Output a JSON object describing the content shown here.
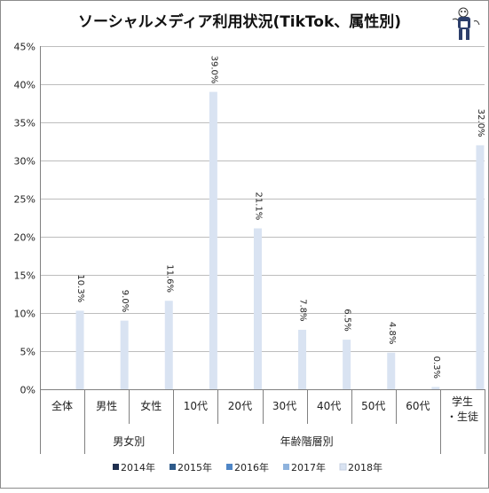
{
  "chart_data": {
    "type": "bar",
    "title": "ソーシャルメディア利用状況(TikTok、属性別)",
    "ylim": [
      0,
      45
    ],
    "yticks": [
      0,
      5,
      10,
      15,
      20,
      25,
      30,
      35,
      40,
      45
    ],
    "ytick_labels": [
      "0%",
      "5%",
      "10%",
      "15%",
      "20%",
      "25%",
      "30%",
      "35%",
      "40%",
      "45%"
    ],
    "categories": [
      [
        "全体"
      ],
      [
        "男性"
      ],
      [
        "女性"
      ],
      [
        "10代"
      ],
      [
        "20代"
      ],
      [
        "30代"
      ],
      [
        "40代"
      ],
      [
        "50代"
      ],
      [
        "60代"
      ],
      [
        "学生",
        "・生徒"
      ]
    ],
    "groups": [
      {
        "label": "男女別",
        "from": 1,
        "to": 2
      },
      {
        "label": "年齢階層別",
        "from": 3,
        "to": 8
      }
    ],
    "series": [
      {
        "name": "2014年",
        "color": "#1f2f4e",
        "values": [
          null,
          null,
          null,
          null,
          null,
          null,
          null,
          null,
          null,
          null
        ]
      },
      {
        "name": "2015年",
        "color": "#2e5a8a",
        "values": [
          null,
          null,
          null,
          null,
          null,
          null,
          null,
          null,
          null,
          null
        ]
      },
      {
        "name": "2016年",
        "color": "#4f86c6",
        "values": [
          null,
          null,
          null,
          null,
          null,
          null,
          null,
          null,
          null,
          null
        ]
      },
      {
        "name": "2017年",
        "color": "#8fb3dd",
        "values": [
          null,
          null,
          null,
          null,
          null,
          null,
          null,
          null,
          null,
          null
        ]
      },
      {
        "name": "2018年",
        "color": "#d9e3f2",
        "values": [
          10.3,
          9.0,
          11.6,
          39.0,
          21.1,
          7.8,
          6.5,
          4.8,
          0.3,
          32.0
        ]
      }
    ],
    "data_labels": [
      "10.3%",
      "9.0%",
      "11.6%",
      "39.0%",
      "21.1%",
      "7.8%",
      "6.5%",
      "4.8%",
      "0.3%",
      "32.0%"
    ],
    "grid": true,
    "legend_position": "bottom"
  }
}
